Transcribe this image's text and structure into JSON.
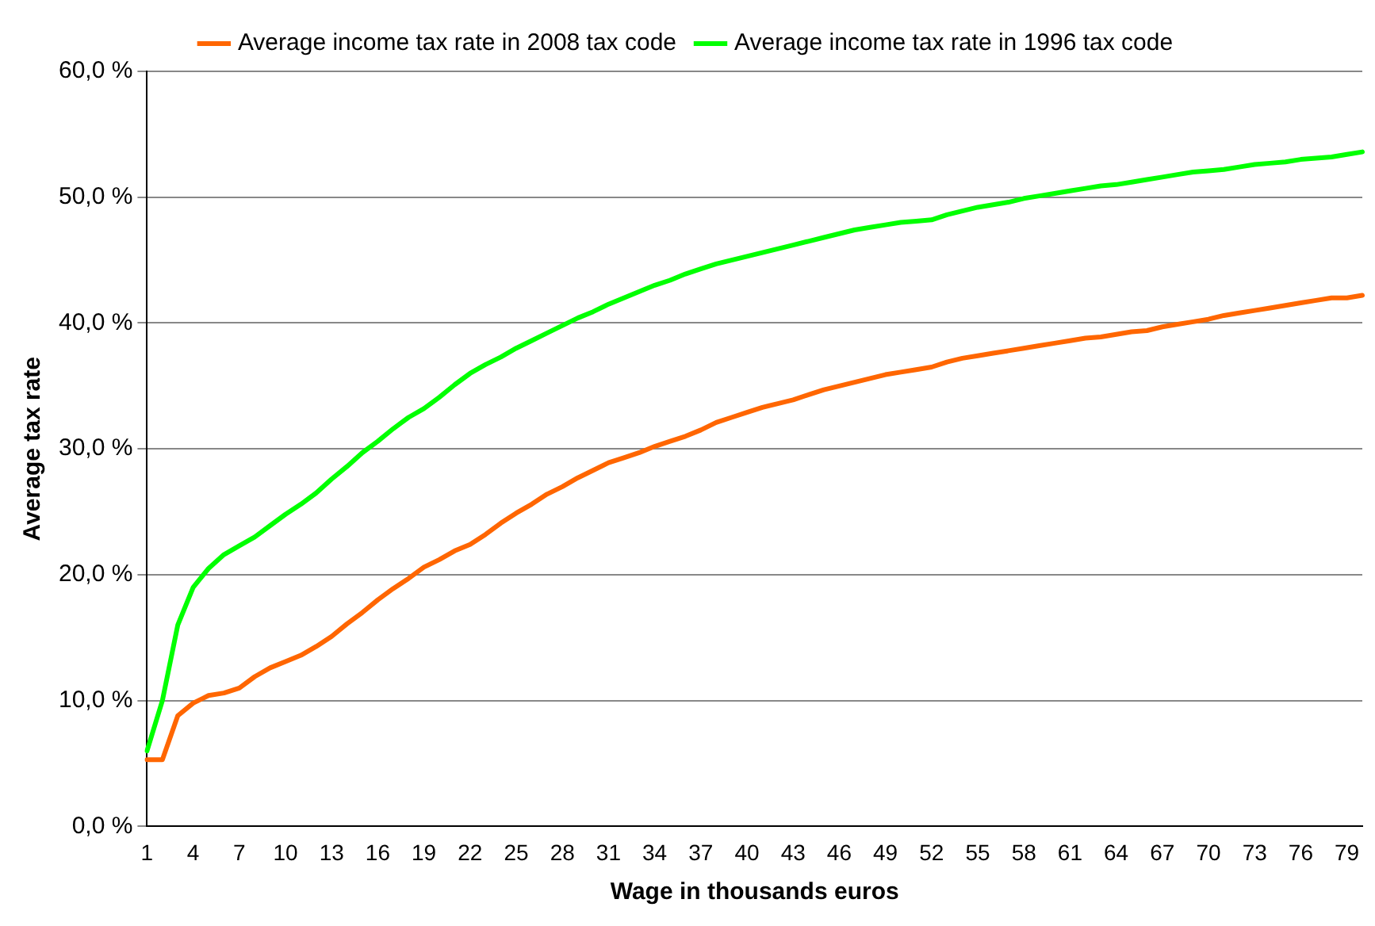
{
  "chart_data": {
    "type": "line",
    "xlabel": "Wage in thousands euros",
    "ylabel": "Average tax rate",
    "categories": [
      "1",
      null,
      null,
      "4",
      null,
      null,
      "7",
      null,
      null,
      "10",
      null,
      null,
      "13",
      null,
      null,
      "16",
      null,
      null,
      "19",
      null,
      null,
      "22",
      null,
      null,
      "25",
      null,
      null,
      "28",
      null,
      null,
      "31",
      null,
      null,
      "34",
      null,
      null,
      "37",
      null,
      null,
      "40",
      null,
      null,
      "43",
      null,
      null,
      "46",
      null,
      null,
      "49",
      null,
      null,
      "52",
      null,
      null,
      "55",
      null,
      null,
      "58",
      null,
      null,
      "61",
      null,
      null,
      "64",
      null,
      null,
      "67",
      null,
      null,
      "70",
      null,
      null,
      "73",
      null,
      null,
      "76",
      null,
      null,
      "79",
      null
    ],
    "series": [
      {
        "name": "Average income tax rate in 2008 tax code",
        "color": "#ff6600",
        "values": [
          5.3,
          5.3,
          8.8,
          9.8,
          10.4,
          10.6,
          11.0,
          11.9,
          12.6,
          13.1,
          13.6,
          14.3,
          15.1,
          16.1,
          17.0,
          18.0,
          18.9,
          19.7,
          20.6,
          21.2,
          21.9,
          22.4,
          23.2,
          24.1,
          24.9,
          25.6,
          26.4,
          27.0,
          27.7,
          28.3,
          28.9,
          29.3,
          29.7,
          30.2,
          30.6,
          31.0,
          31.5,
          32.1,
          32.5,
          32.9,
          33.3,
          33.6,
          33.9,
          34.3,
          34.7,
          35.0,
          35.3,
          35.6,
          35.9,
          36.1,
          36.3,
          36.5,
          36.9,
          37.2,
          37.4,
          37.6,
          37.8,
          38.0,
          38.2,
          38.4,
          38.6,
          38.8,
          38.9,
          39.1,
          39.3,
          39.4,
          39.7,
          39.9,
          40.1,
          40.3,
          40.6,
          40.8,
          41.0,
          41.2,
          41.4,
          41.6,
          41.8,
          42.0,
          42.0,
          42.2
        ]
      },
      {
        "name": "Average income tax rate in 1996 tax code",
        "color": "#00ff00",
        "values": [
          6.0,
          10.0,
          16.0,
          19.0,
          20.5,
          21.6,
          22.3,
          23.0,
          23.9,
          24.8,
          25.6,
          26.5,
          27.6,
          28.6,
          29.7,
          30.6,
          31.6,
          32.5,
          33.2,
          34.1,
          35.1,
          36.0,
          36.7,
          37.3,
          38.0,
          38.6,
          39.2,
          39.8,
          40.4,
          40.9,
          41.5,
          42.0,
          42.5,
          43.0,
          43.4,
          43.9,
          44.3,
          44.7,
          45.0,
          45.3,
          45.6,
          45.9,
          46.2,
          46.5,
          46.8,
          47.1,
          47.4,
          47.6,
          47.8,
          48.0,
          48.1,
          48.2,
          48.6,
          48.9,
          49.2,
          49.4,
          49.6,
          49.9,
          50.1,
          50.3,
          50.5,
          50.7,
          50.9,
          51.0,
          51.2,
          51.4,
          51.6,
          51.8,
          52.0,
          52.1,
          52.2,
          52.4,
          52.6,
          52.7,
          52.8,
          53.0,
          53.1,
          53.2,
          53.4,
          53.6
        ]
      }
    ],
    "ylim": [
      0,
      60
    ],
    "yticks": [
      {
        "value": 0,
        "label": "0,0 %"
      },
      {
        "value": 10,
        "label": "10,0 %"
      },
      {
        "value": 20,
        "label": "20,0 %"
      },
      {
        "value": 30,
        "label": "30,0 %"
      },
      {
        "value": 40,
        "label": "40,0 %"
      },
      {
        "value": 50,
        "label": "50,0 %"
      },
      {
        "value": 60,
        "label": "60,0 %"
      }
    ],
    "grid": "y",
    "legend": "top",
    "marker": "none",
    "line_style": "solid"
  }
}
